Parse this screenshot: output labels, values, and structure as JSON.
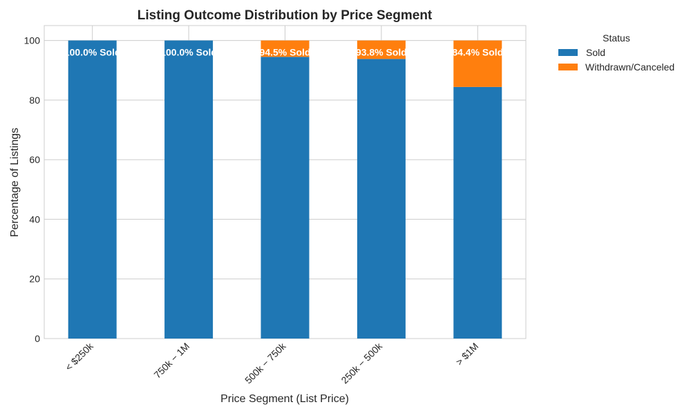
{
  "chart_data": {
    "type": "bar",
    "stacked": true,
    "title": "Listing Outcome Distribution by Price Segment",
    "xlabel": "Price Segment (List Price)",
    "ylabel": "Percentage of Listings",
    "ylim": [
      0,
      105
    ],
    "yticks": [
      0,
      20,
      40,
      60,
      80,
      100
    ],
    "grid": true,
    "categories": [
      "< $250k",
      "750k − 1M",
      "500k − 750k",
      "250k − 500k",
      "> $1M"
    ],
    "series": [
      {
        "name": "Sold",
        "color": "#1f77b4",
        "values": [
          100.0,
          100.0,
          94.5,
          93.8,
          84.4
        ]
      },
      {
        "name": "Withdrawn/Canceled",
        "color": "#ff7f0e",
        "values": [
          0.0,
          0.0,
          5.5,
          6.2,
          15.6
        ]
      }
    ],
    "data_labels": [
      "100.0% Sold",
      "100.0% Sold",
      "94.5% Sold",
      "93.8% Sold",
      "84.4% Sold"
    ],
    "legend": {
      "title": "Status",
      "placement": "outside-top-right"
    }
  }
}
